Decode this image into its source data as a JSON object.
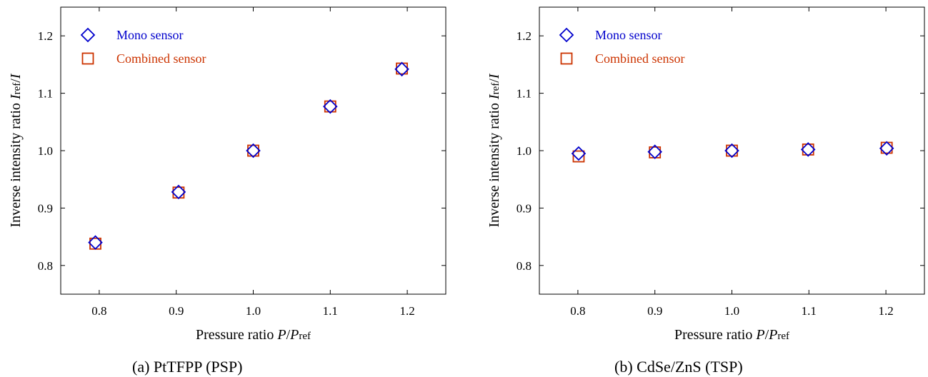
{
  "colors": {
    "mono": "#0000cc",
    "combined": "#cc3300",
    "axis": "#000000"
  },
  "chart_data": [
    {
      "type": "scatter",
      "caption": "(a) PtTFPP (PSP)",
      "xlabel": {
        "main": "Pressure ratio ",
        "var": "P",
        "slash": "/",
        "var2": "P",
        "sub": "ref"
      },
      "ylabel": {
        "main": "Inverse intensity ratio ",
        "var": "I",
        "sub": "ref",
        "slash": "/",
        "var2": "I"
      },
      "xlim": [
        0.75,
        1.25
      ],
      "ylim": [
        0.75,
        1.25
      ],
      "xticks": [
        0.8,
        0.9,
        1.0,
        1.1,
        1.2
      ],
      "xtick_labels": [
        "0.8",
        "0.9",
        "1.0",
        "1.1",
        "1.2"
      ],
      "yticks": [
        0.8,
        0.9,
        1.0,
        1.1,
        1.2
      ],
      "ytick_labels": [
        "0.8",
        "0.9",
        "1.0",
        "1.1",
        "1.2"
      ],
      "legend_position": "top-left",
      "series": [
        {
          "name": "Mono sensor",
          "marker": "diamond",
          "color": "#0000cc",
          "x": [
            0.795,
            0.903,
            1.0,
            1.1,
            1.193
          ],
          "y": [
            0.84,
            0.928,
            1.0,
            1.077,
            1.142
          ]
        },
        {
          "name": "Combined sensor",
          "marker": "square",
          "color": "#cc3300",
          "x": [
            0.795,
            0.903,
            1.0,
            1.1,
            1.193
          ],
          "y": [
            0.838,
            0.927,
            1.0,
            1.077,
            1.143
          ]
        }
      ]
    },
    {
      "type": "scatter",
      "caption": "(b) CdSe/ZnS (TSP)",
      "xlabel": {
        "main": "Pressure ratio ",
        "var": "P",
        "slash": "/",
        "var2": "P",
        "sub": "ref"
      },
      "ylabel": {
        "main": "Inverse intensity ratio ",
        "var": "I",
        "sub": "ref",
        "slash": "/",
        "var2": "I"
      },
      "xlim": [
        0.75,
        1.25
      ],
      "ylim": [
        0.75,
        1.25
      ],
      "xticks": [
        0.8,
        0.9,
        1.0,
        1.1,
        1.2
      ],
      "xtick_labels": [
        "0.8",
        "0.9",
        "1.0",
        "1.1",
        "1.2"
      ],
      "yticks": [
        0.8,
        0.9,
        1.0,
        1.1,
        1.2
      ],
      "ytick_labels": [
        "0.8",
        "0.9",
        "1.0",
        "1.1",
        "1.2"
      ],
      "legend_position": "top-left",
      "series": [
        {
          "name": "Mono sensor",
          "marker": "diamond",
          "color": "#0000cc",
          "x": [
            0.801,
            0.9,
            1.0,
            1.099,
            1.201
          ],
          "y": [
            0.995,
            0.998,
            1.0,
            1.002,
            1.004
          ]
        },
        {
          "name": "Combined sensor",
          "marker": "square",
          "color": "#cc3300",
          "x": [
            0.801,
            0.9,
            1.0,
            1.099,
            1.201
          ],
          "y": [
            0.99,
            0.997,
            1.0,
            1.002,
            1.005
          ]
        }
      ]
    }
  ]
}
